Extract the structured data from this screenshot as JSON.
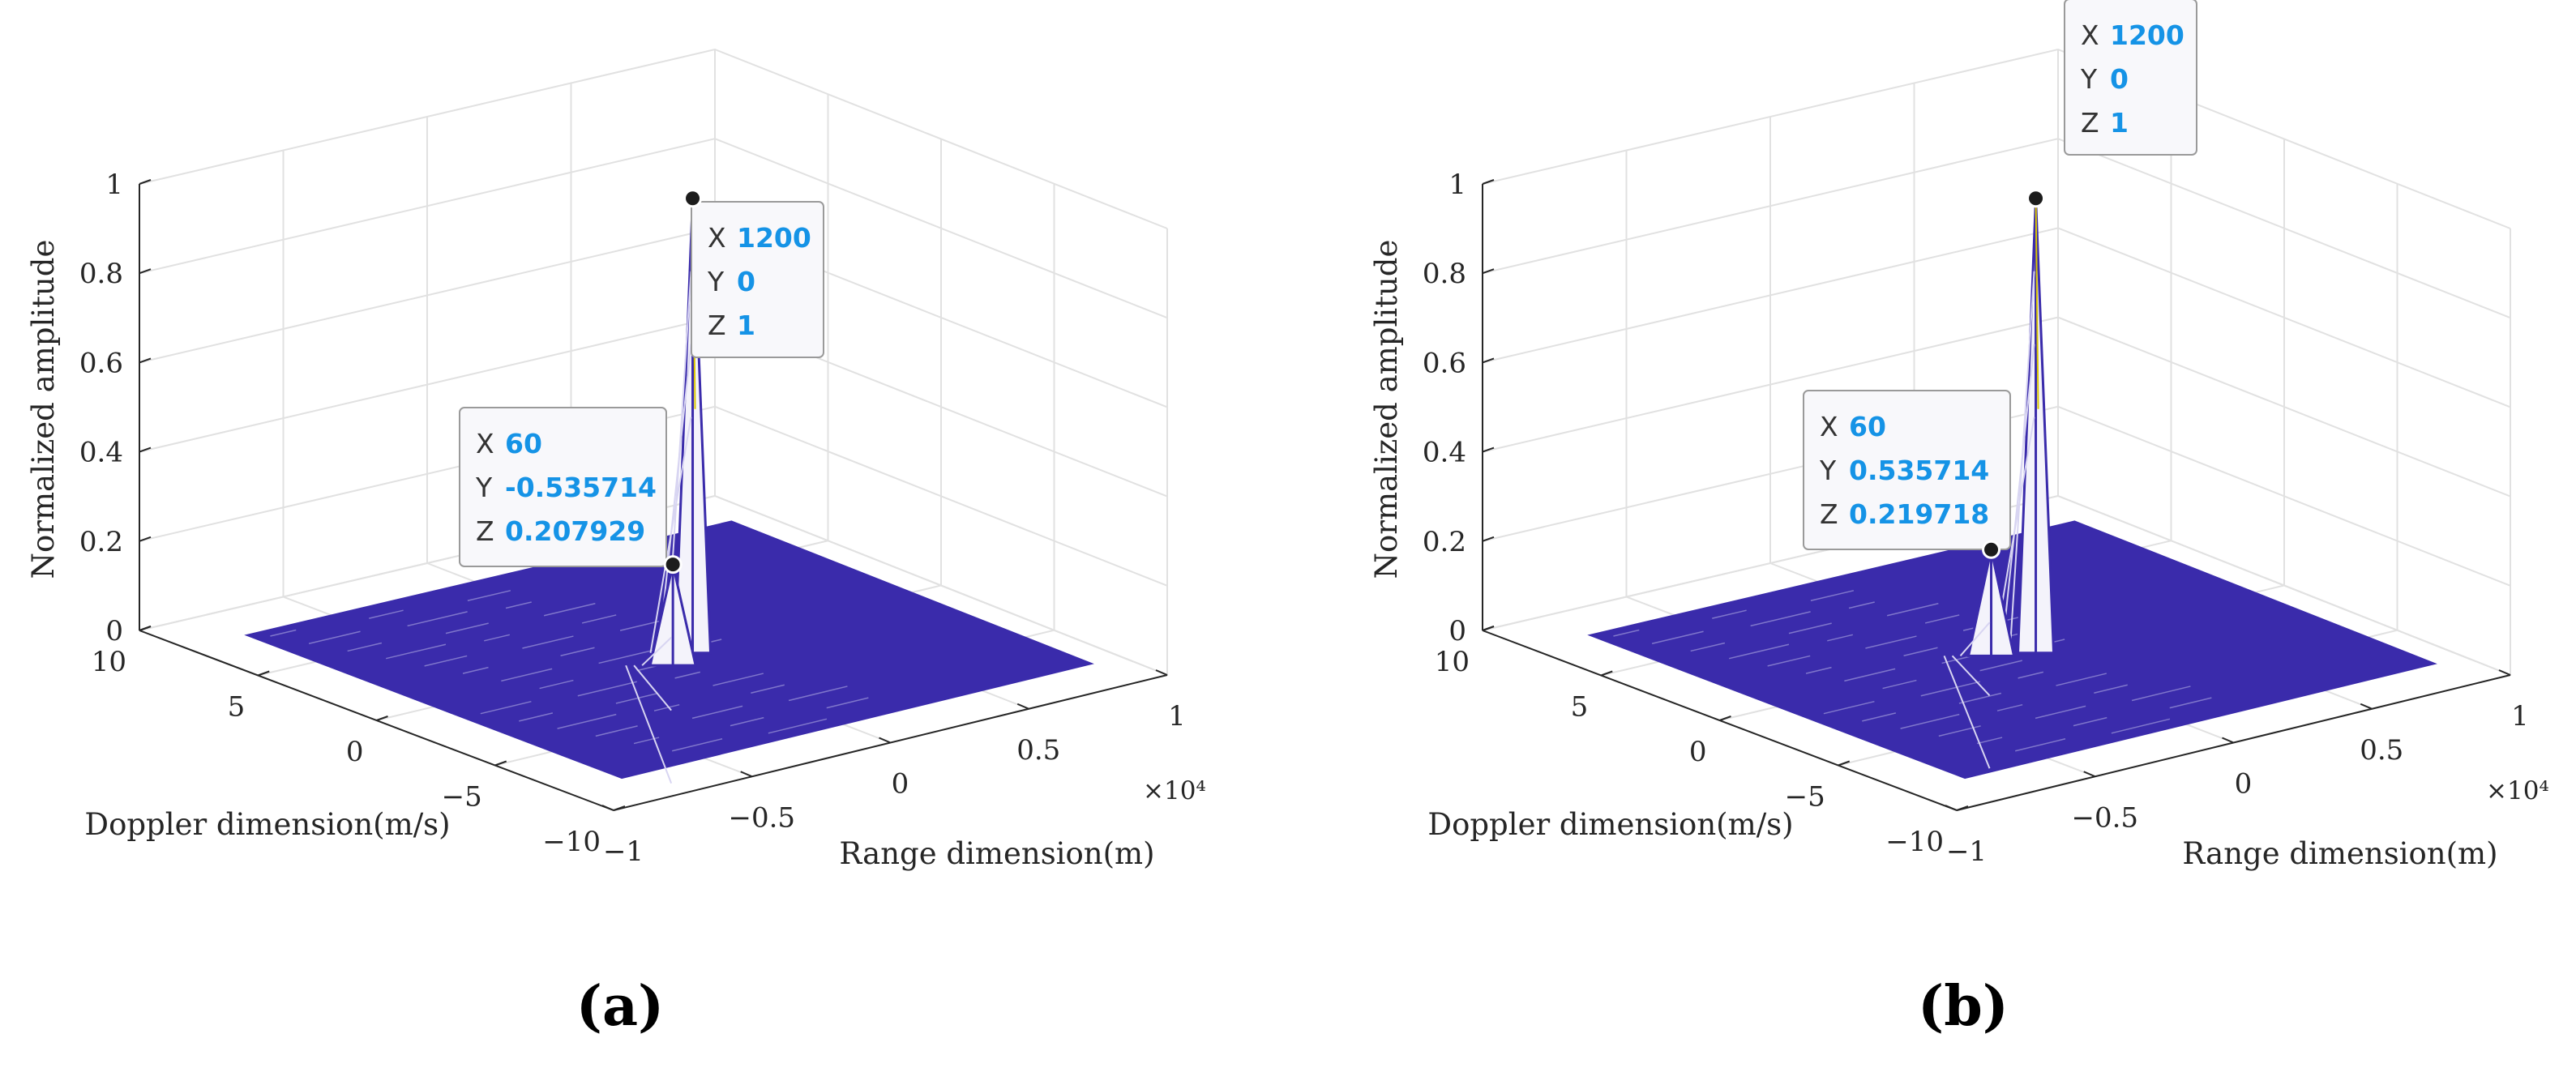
{
  "chart_data": [
    {
      "type": "surface",
      "caption": "(a)",
      "xlabel": "Range dimension(m)",
      "ylabel": "Doppler dimension(m/s)",
      "zlabel": "Normalized amplitude",
      "x_exponent": "×10⁴",
      "x_ticks": [
        "−1",
        "−0.5",
        "0",
        "0.5",
        "1"
      ],
      "y_ticks": [
        "10",
        "5",
        "0",
        "−5",
        "−10"
      ],
      "z_ticks": [
        "0",
        "0.2",
        "0.4",
        "0.6",
        "0.8",
        "1"
      ],
      "xlim": [
        -10000,
        10000
      ],
      "ylim": [
        -10,
        10
      ],
      "zlim": [
        0,
        1
      ],
      "grid": true,
      "surface_color": "#3a2bab",
      "points": [
        {
          "x": 1200,
          "y": 0,
          "z": 1
        },
        {
          "x": 60,
          "y": -0.535714,
          "z": 0.207929
        }
      ],
      "datatips": [
        {
          "x_label": "X",
          "x_value": "1200",
          "y_label": "Y",
          "y_value": "0",
          "z_label": "Z",
          "z_value": "1"
        },
        {
          "x_label": "X",
          "x_value": "60",
          "y_label": "Y",
          "y_value": "-0.535714",
          "z_label": "Z",
          "z_value": "0.207929"
        }
      ]
    },
    {
      "type": "surface",
      "caption": "(b)",
      "xlabel": "Range dimension(m)",
      "ylabel": "Doppler dimension(m/s)",
      "zlabel": "Normalized amplitude",
      "x_exponent": "×10⁴",
      "x_ticks": [
        "−1",
        "−0.5",
        "0",
        "0.5",
        "1"
      ],
      "y_ticks": [
        "10",
        "5",
        "0",
        "−5",
        "−10"
      ],
      "z_ticks": [
        "0",
        "0.2",
        "0.4",
        "0.6",
        "0.8",
        "1"
      ],
      "xlim": [
        -10000,
        10000
      ],
      "ylim": [
        -10,
        10
      ],
      "zlim": [
        0,
        1
      ],
      "grid": true,
      "surface_color": "#3a2bab",
      "points": [
        {
          "x": 1200,
          "y": 0,
          "z": 1
        },
        {
          "x": 60,
          "y": 0.535714,
          "z": 0.219718
        }
      ],
      "datatips": [
        {
          "x_label": "X",
          "x_value": "1200",
          "y_label": "Y",
          "y_value": "0",
          "z_label": "Z",
          "z_value": "1"
        },
        {
          "x_label": "X",
          "x_value": "60",
          "y_label": "Y",
          "y_value": "0.535714",
          "z_label": "Z",
          "z_value": "0.219718"
        }
      ]
    }
  ]
}
